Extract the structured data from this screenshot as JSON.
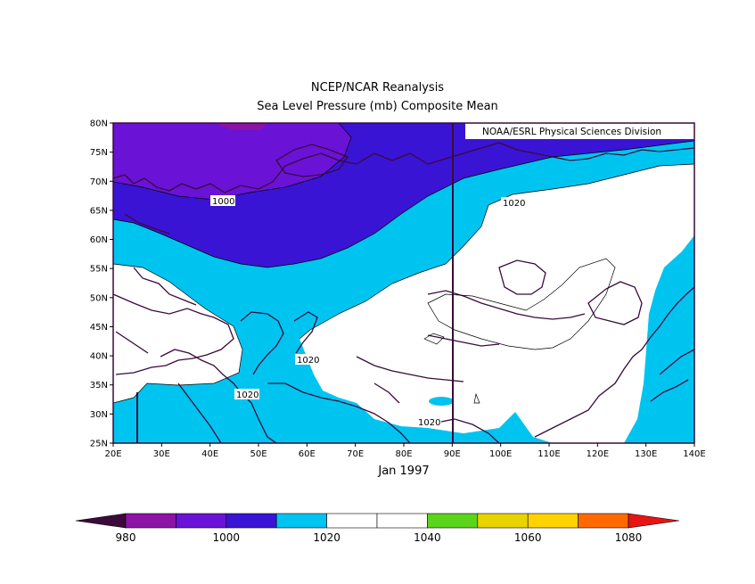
{
  "header": {
    "title": "NCEP/NCAR Reanalysis",
    "subtitle": "Sea Level Pressure (mb) Composite Mean"
  },
  "credit": "NOAA/ESRL Physical Sciences Division",
  "date_label": "Jan 1997",
  "map": {
    "lon_range": [
      20,
      140
    ],
    "lat_range": [
      25,
      80
    ],
    "lon_ticks": [
      "20E",
      "30E",
      "40E",
      "50E",
      "60E",
      "70E",
      "80E",
      "90E",
      "100E",
      "110E",
      "120E",
      "130E",
      "140E"
    ],
    "lat_ticks": [
      "80N",
      "75N",
      "70N",
      "65N",
      "60N",
      "55N",
      "50N",
      "45N",
      "40N",
      "35N",
      "30N",
      "25N"
    ],
    "contour_labels": [
      "1000",
      "1020",
      "1020",
      "1020",
      "1020"
    ]
  },
  "colorbar": {
    "labels": [
      "980",
      "1000",
      "1020",
      "1040",
      "1060",
      "1080"
    ],
    "colors": [
      "#3a0a3a",
      "#8b14a6",
      "#6a12d6",
      "#3a14d4",
      "#00c4f0",
      "#ffffff",
      "#ffffff",
      "#5cd41c",
      "#e8d400",
      "#ffd400",
      "#ff6a00",
      "#e81414"
    ]
  }
}
